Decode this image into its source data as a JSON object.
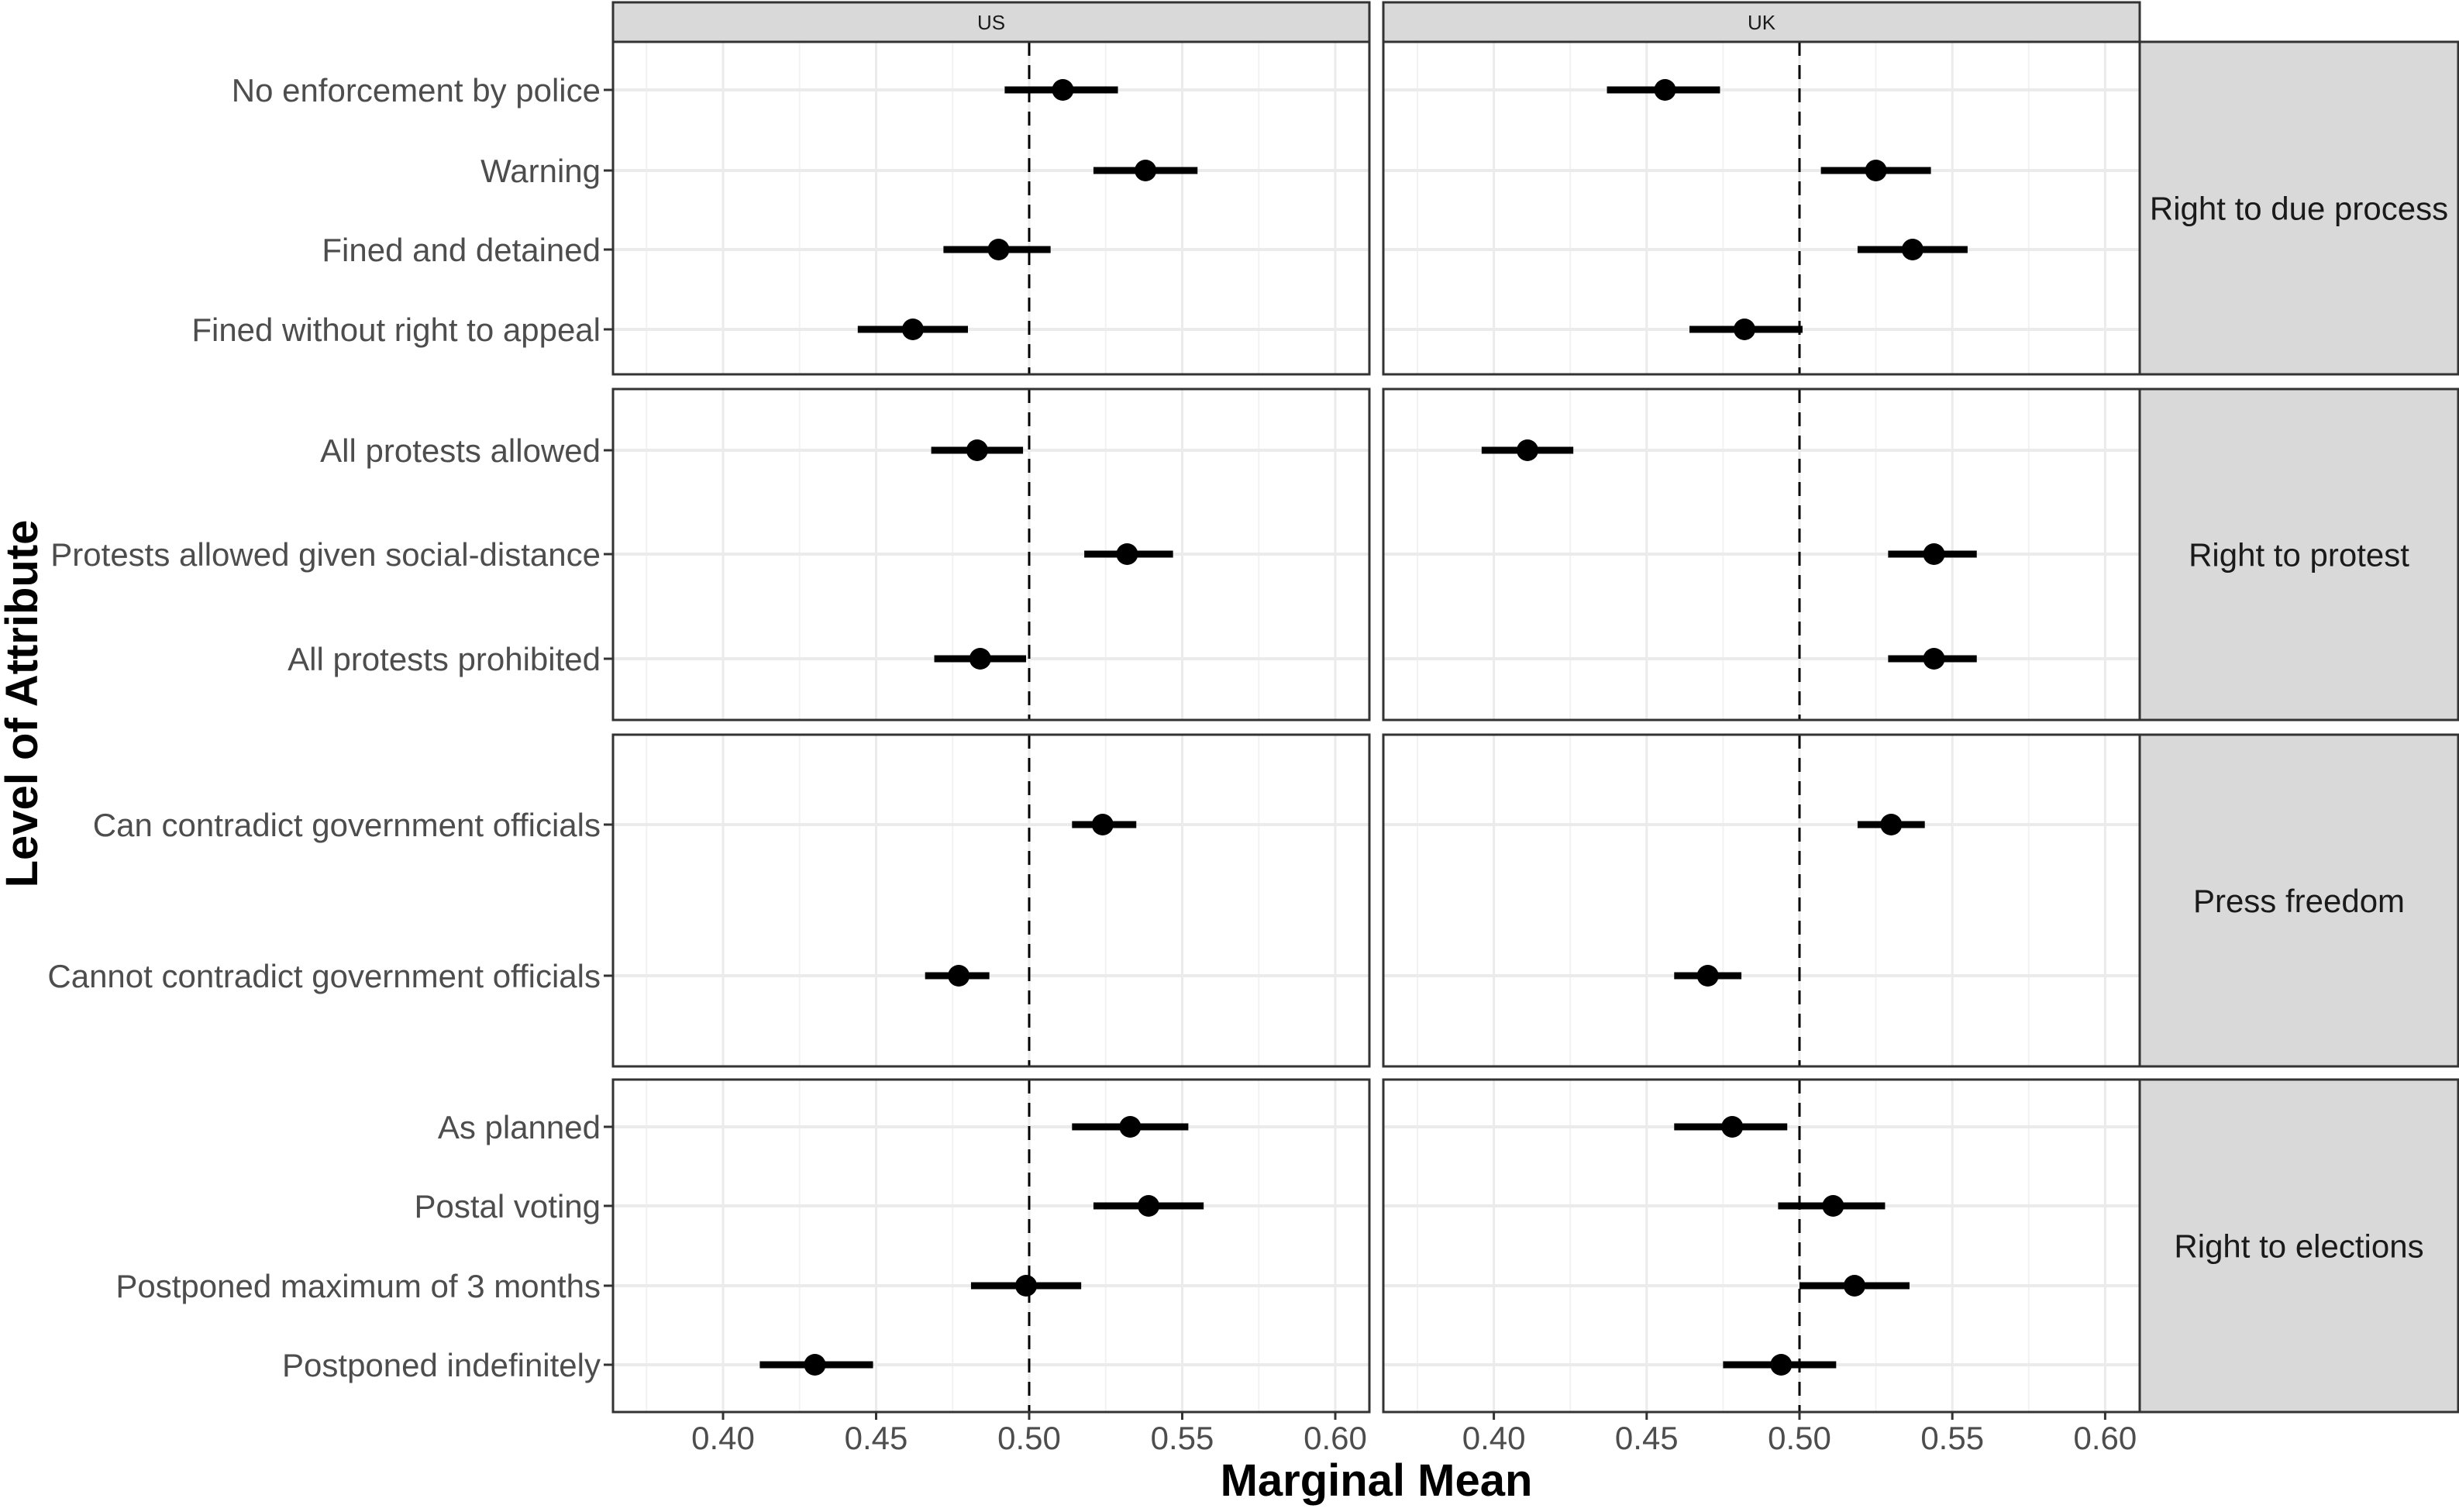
{
  "chart_data": {
    "type": "scatter",
    "subtype": "dot-and-whisker (point estimate with 95% CI), faceted grid",
    "title": "",
    "xlabel": "Marginal Mean",
    "ylabel": "Level of Attribute",
    "xlim": [
      0.364,
      0.611
    ],
    "xticks": [
      0.4,
      0.45,
      0.5,
      0.55,
      0.6
    ],
    "xtick_labels": [
      "0.40",
      "0.45",
      "0.50",
      "0.55",
      "0.60"
    ],
    "reference_line": {
      "x": 0.5,
      "style": "dashed",
      "color": "#000000"
    },
    "grid": true,
    "legend": null,
    "facet_columns": [
      "US",
      "UK"
    ],
    "facet_rows": [
      "Right to due process",
      "Right to protest",
      "Press freedom",
      "Right to elections"
    ],
    "panels": [
      {
        "row": "Right to due process",
        "levels": [
          "No enforcement by police",
          "Warning",
          "Fined and detained",
          "Fined without right to appeal"
        ],
        "series": [
          {
            "name": "US",
            "estimate": [
              0.511,
              0.538,
              0.49,
              0.462
            ],
            "ci_low": [
              0.492,
              0.521,
              0.472,
              0.444
            ],
            "ci_high": [
              0.529,
              0.555,
              0.507,
              0.48
            ]
          },
          {
            "name": "UK",
            "estimate": [
              0.456,
              0.525,
              0.537,
              0.482
            ],
            "ci_low": [
              0.437,
              0.507,
              0.519,
              0.464
            ],
            "ci_high": [
              0.474,
              0.543,
              0.555,
              0.501
            ]
          }
        ]
      },
      {
        "row": "Right to protest",
        "levels": [
          "All protests allowed",
          "Protests allowed given social-distance",
          "All protests prohibited"
        ],
        "series": [
          {
            "name": "US",
            "estimate": [
              0.483,
              0.532,
              0.484
            ],
            "ci_low": [
              0.468,
              0.518,
              0.469
            ],
            "ci_high": [
              0.498,
              0.547,
              0.499
            ]
          },
          {
            "name": "UK",
            "estimate": [
              0.411,
              0.544,
              0.544
            ],
            "ci_low": [
              0.396,
              0.529,
              0.529
            ],
            "ci_high": [
              0.426,
              0.558,
              0.558
            ]
          }
        ]
      },
      {
        "row": "Press freedom",
        "levels": [
          "Can contradict government officials",
          "Cannot contradict government officials"
        ],
        "series": [
          {
            "name": "US",
            "estimate": [
              0.524,
              0.477
            ],
            "ci_low": [
              0.514,
              0.466
            ],
            "ci_high": [
              0.535,
              0.487
            ]
          },
          {
            "name": "UK",
            "estimate": [
              0.53,
              0.47
            ],
            "ci_low": [
              0.519,
              0.459
            ],
            "ci_high": [
              0.541,
              0.481
            ]
          }
        ]
      },
      {
        "row": "Right to elections",
        "levels": [
          "As planned",
          "Postal voting",
          "Postponed maximum of 3 months",
          "Postponed indefinitely"
        ],
        "series": [
          {
            "name": "US",
            "estimate": [
              0.533,
              0.539,
              0.499,
              0.43
            ],
            "ci_low": [
              0.514,
              0.521,
              0.481,
              0.412
            ],
            "ci_high": [
              0.552,
              0.557,
              0.517,
              0.449
            ]
          },
          {
            "name": "UK",
            "estimate": [
              0.478,
              0.511,
              0.518,
              0.494
            ],
            "ci_low": [
              0.459,
              0.493,
              0.5,
              0.475
            ],
            "ci_high": [
              0.496,
              0.528,
              0.536,
              0.512
            ]
          }
        ]
      }
    ]
  },
  "colors": {
    "background": "#ffffff",
    "strip_fill": "#d9d9d9",
    "panel_border": "#333333",
    "grid_major": "#ebebeb",
    "grid_minor": "#f2f2f2",
    "point": "#000000",
    "text": "#4d4d4d",
    "strip_text": "#1a1a1a"
  }
}
